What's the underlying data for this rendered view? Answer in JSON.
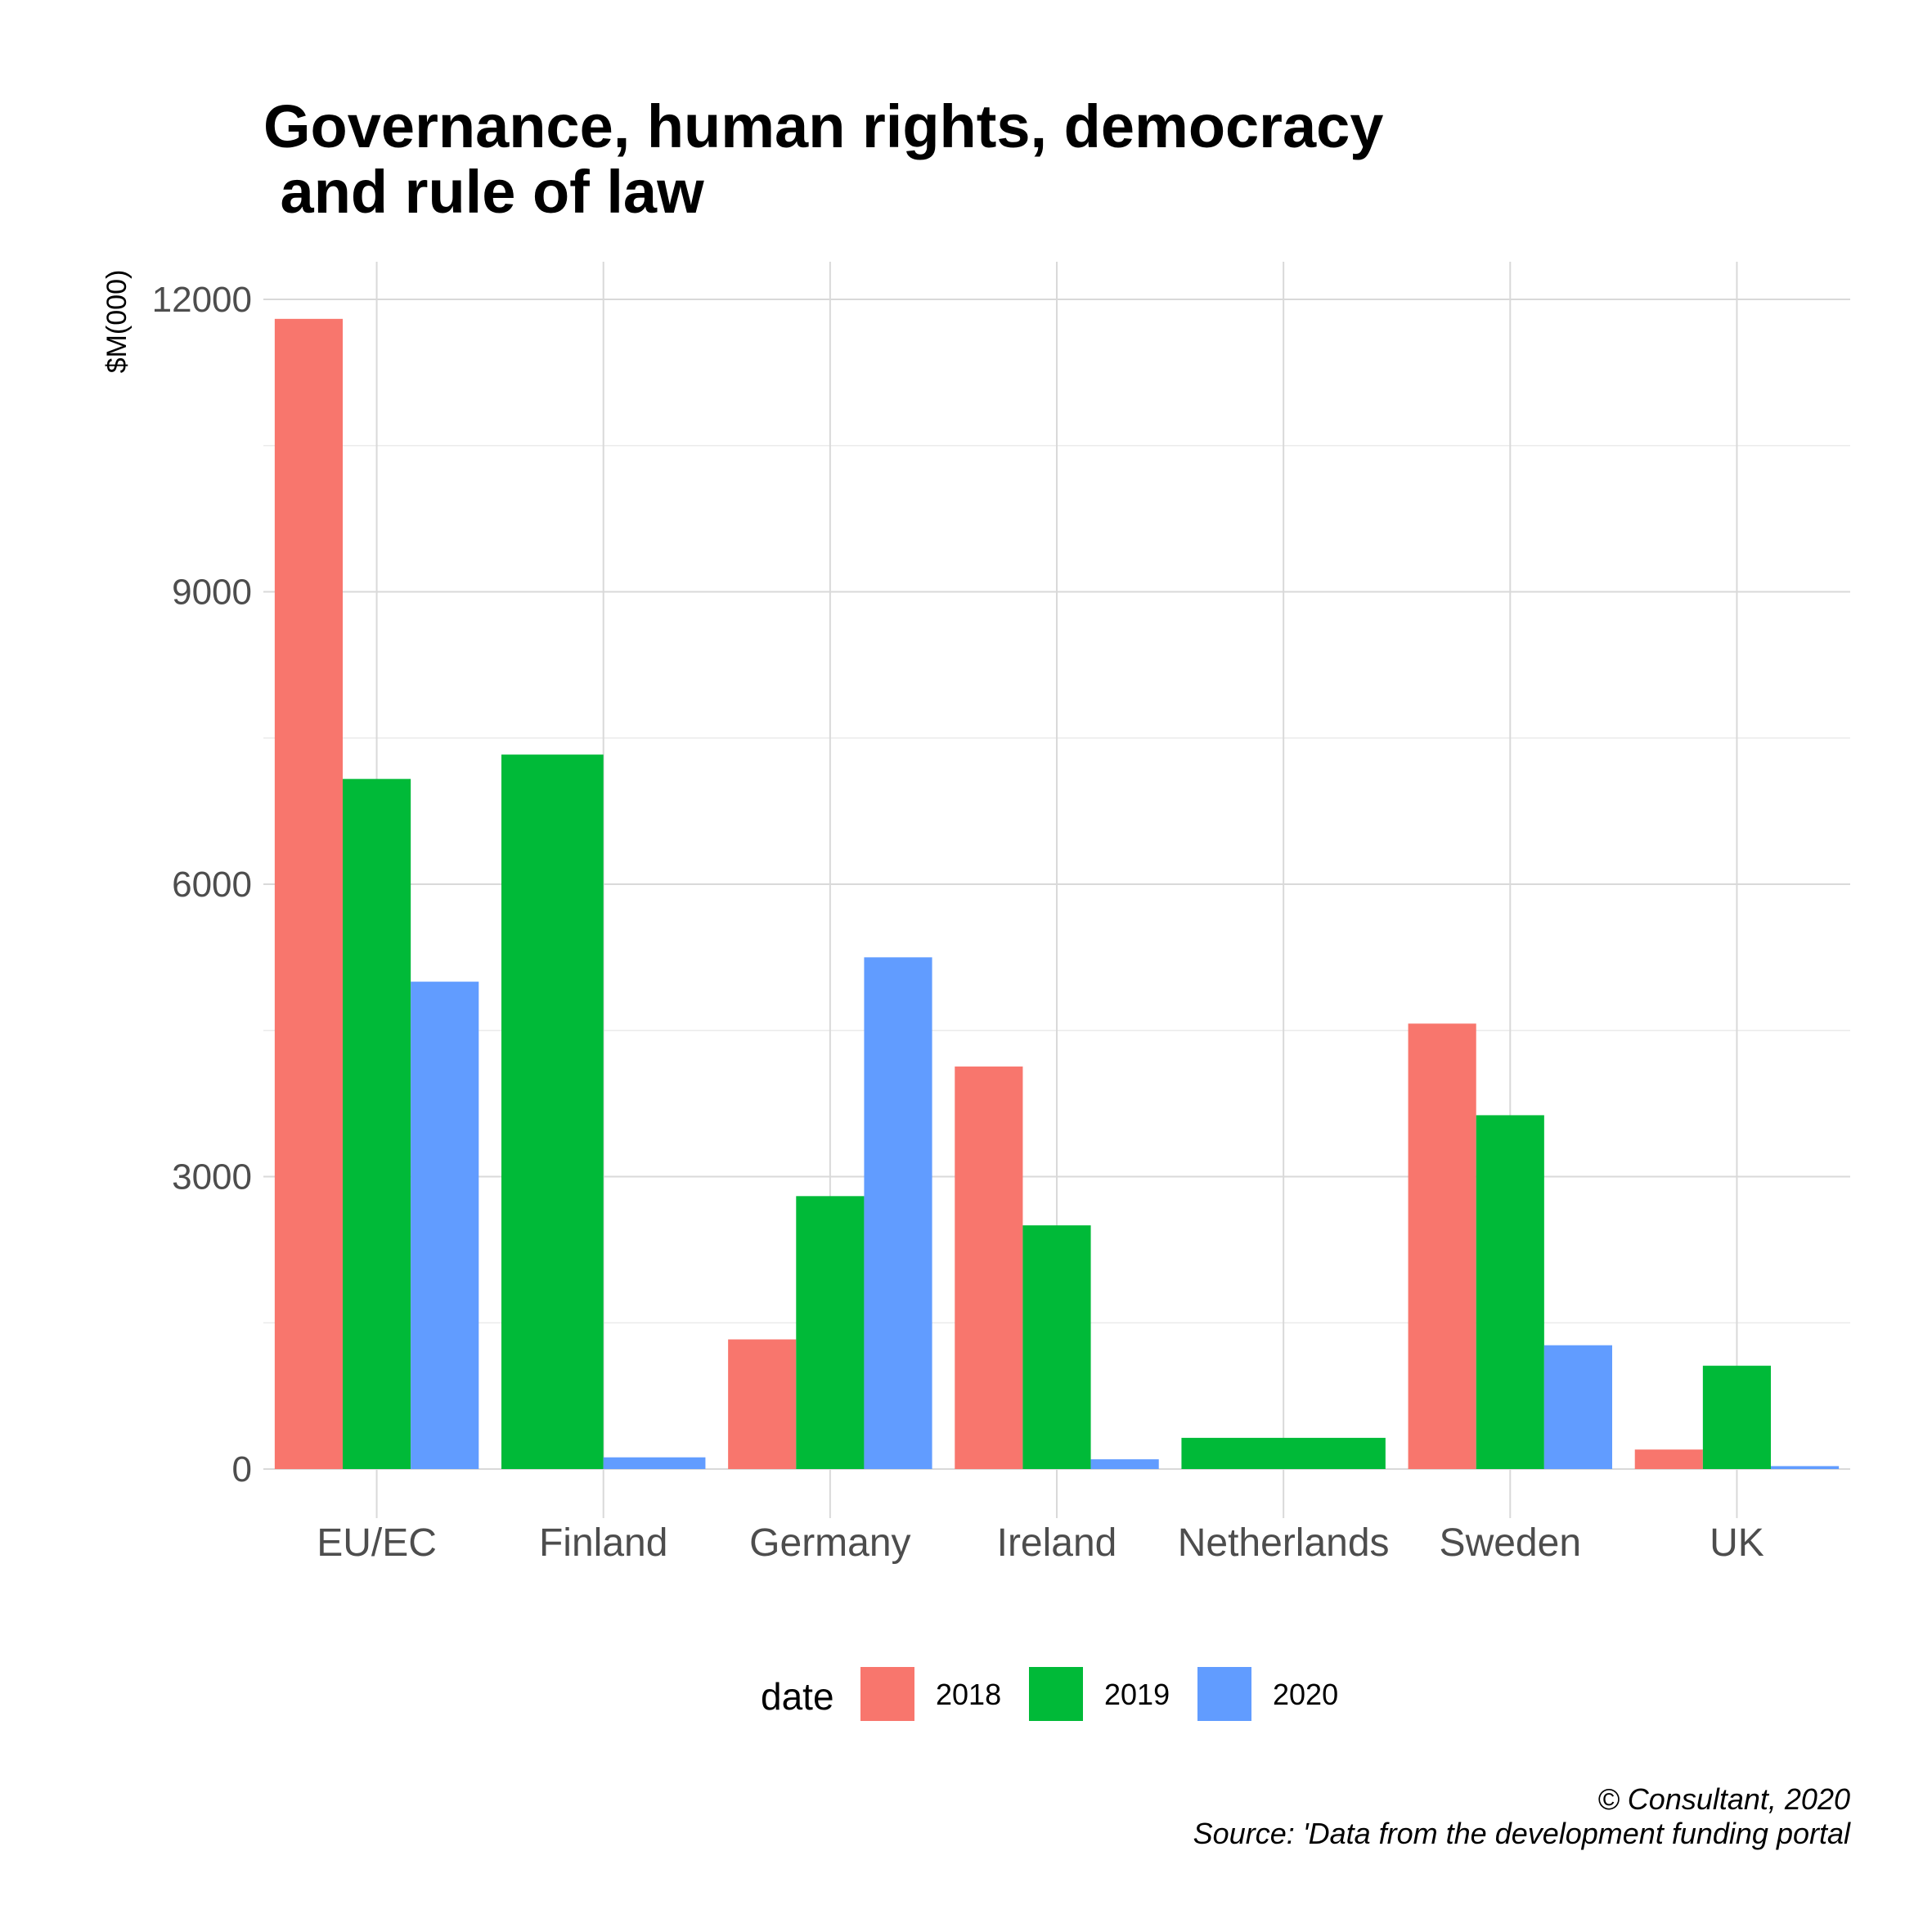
{
  "chart_data": {
    "type": "bar",
    "title_lines": [
      "Governance, human rights, democracy",
      " and rule of law"
    ],
    "xlabel": "",
    "ylabel": "$M(000)",
    "ylim": [
      0,
      12000
    ],
    "yticks": [
      0,
      3000,
      6000,
      9000,
      12000
    ],
    "grid": true,
    "categories": [
      "EU/EC",
      "Finland",
      "Germany",
      "Ireland",
      "Netherlands",
      "Sweden",
      "UK"
    ],
    "series": [
      {
        "name": "2018",
        "color": "#F8766D",
        "values": [
          11800,
          null,
          1330,
          4130,
          null,
          4570,
          200
        ]
      },
      {
        "name": "2019",
        "color": "#00BA38",
        "values": [
          7080,
          7330,
          2800,
          2500,
          320,
          3630,
          1060
        ]
      },
      {
        "name": "2020",
        "color": "#619CFF",
        "values": [
          5000,
          120,
          5250,
          100,
          null,
          1270,
          30
        ]
      }
    ],
    "legend": {
      "title": "date",
      "position": "bottom"
    },
    "caption_lines": [
      "© Consultant, 2020",
      "Source: 'Data from the development funding portal"
    ]
  }
}
